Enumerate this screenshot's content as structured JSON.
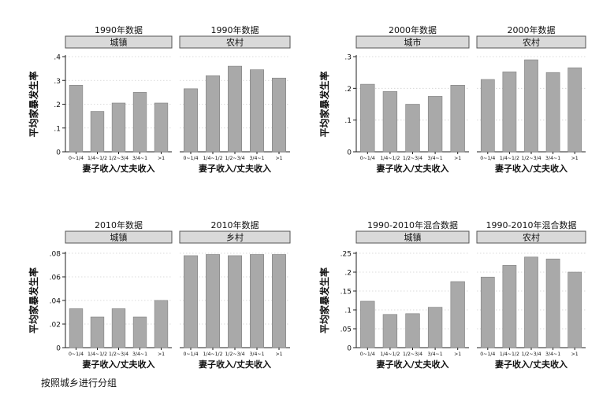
{
  "footnote": "按照城乡进行分组",
  "colors": {
    "bar": "#a9a9a9",
    "bar_stroke": "#7f7f7f",
    "strip": "#d9d9d9",
    "grid": "#d0d0d0",
    "axis": "#222222"
  },
  "chart_data": [
    {
      "type": "bar",
      "ylabel": "平均家暴发生率",
      "xlabel": "妻子收入/丈夫收入",
      "categories": [
        "0~1/4",
        "1/4~1/2",
        "1/2~3/4",
        "3/4~1",
        ">1"
      ],
      "ylim": [
        0,
        0.4
      ],
      "yticks": [
        0,
        0.1,
        0.2,
        0.3,
        0.4
      ],
      "ytick_labels": [
        "0",
        ".1",
        ".2",
        ".3",
        ".4"
      ],
      "grid": true,
      "panels": [
        {
          "title": "1990年数据",
          "strip": "城镇",
          "values": [
            0.28,
            0.17,
            0.205,
            0.25,
            0.205
          ]
        },
        {
          "title": "1990年数据",
          "strip": "农村",
          "values": [
            0.265,
            0.32,
            0.36,
            0.345,
            0.31
          ]
        }
      ]
    },
    {
      "type": "bar",
      "ylabel": "平均家暴发生率",
      "xlabel": "妻子收入/丈夫收入",
      "categories": [
        "0~1/4",
        "1/4~1/2",
        "1/2~3/4",
        "3/4~1",
        ">1"
      ],
      "ylim": [
        0,
        0.3
      ],
      "yticks": [
        0,
        0.1,
        0.2,
        0.3
      ],
      "ytick_labels": [
        "0",
        ".1",
        ".2",
        ".3"
      ],
      "grid": true,
      "panels": [
        {
          "title": "2000年数据",
          "strip": "城市",
          "values": [
            0.213,
            0.19,
            0.15,
            0.175,
            0.21
          ]
        },
        {
          "title": "2000年数据",
          "strip": "农村",
          "values": [
            0.228,
            0.252,
            0.29,
            0.25,
            0.265
          ]
        }
      ]
    },
    {
      "type": "bar",
      "ylabel": "平均家暴发生率",
      "xlabel": "妻子收入/丈夫收入",
      "categories": [
        "0~1/4",
        "1/4~1/2",
        "1/2~3/4",
        "3/4~1",
        ">1"
      ],
      "ylim": [
        0,
        0.08
      ],
      "yticks": [
        0,
        0.02,
        0.04,
        0.06,
        0.08
      ],
      "ytick_labels": [
        "0",
        ".02",
        ".04",
        ".06",
        ".08"
      ],
      "grid": true,
      "panels": [
        {
          "title": "2010年数据",
          "strip": "城镇",
          "values": [
            0.033,
            0.026,
            0.033,
            0.026,
            0.04
          ]
        },
        {
          "title": "2010年数据",
          "strip": "乡村",
          "values": [
            0.078,
            0.079,
            0.078,
            0.079,
            0.079
          ]
        }
      ]
    },
    {
      "type": "bar",
      "ylabel": "平均家暴发生率",
      "xlabel": "妻子收入/丈夫收入",
      "categories": [
        "0~1/4",
        "1/4~1/2",
        "1/2~3/4",
        "3/4~1",
        ">1"
      ],
      "ylim": [
        0,
        0.25
      ],
      "yticks": [
        0,
        0.05,
        0.1,
        0.15,
        0.2,
        0.25
      ],
      "ytick_labels": [
        "0",
        ".05",
        ".1",
        ".15",
        ".2",
        ".25"
      ],
      "grid": true,
      "panels": [
        {
          "title": "1990-2010年混合数据",
          "strip": "城镇",
          "values": [
            0.123,
            0.088,
            0.09,
            0.107,
            0.175
          ]
        },
        {
          "title": "1990-2010年混合数据",
          "strip": "农村",
          "values": [
            0.187,
            0.218,
            0.24,
            0.235,
            0.2
          ]
        }
      ]
    }
  ]
}
